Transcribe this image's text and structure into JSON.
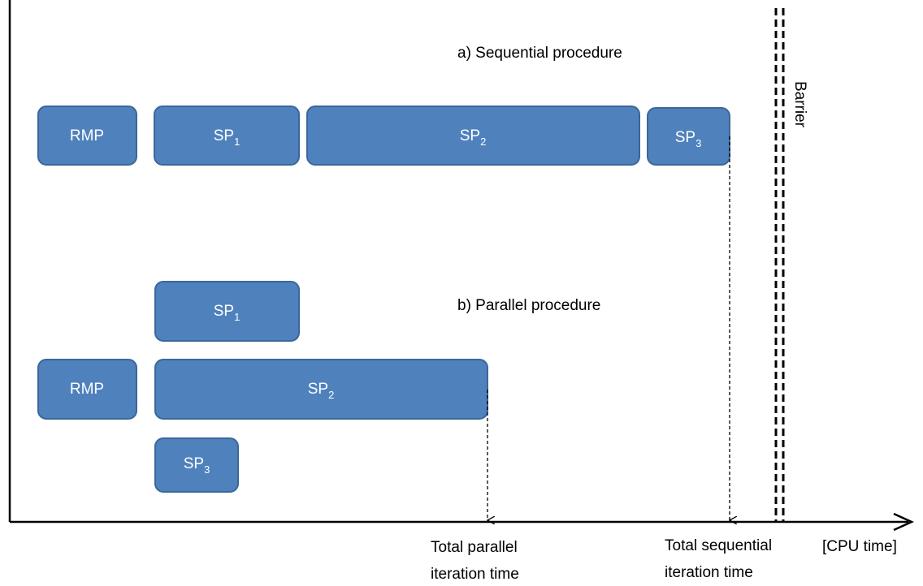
{
  "sequential": {
    "title": "a) Sequential procedure",
    "boxes": [
      {
        "label": "RMP"
      },
      {
        "label": "SP",
        "sub": "1"
      },
      {
        "label": "SP",
        "sub": "2"
      },
      {
        "label": "SP",
        "sub": "3"
      }
    ],
    "annotation": [
      "Total sequential",
      "iteration time"
    ]
  },
  "parallel": {
    "title": "b) Parallel procedure",
    "boxes": [
      {
        "label": "SP",
        "sub": "1"
      },
      {
        "label": "RMP"
      },
      {
        "label": "SP",
        "sub": "2"
      },
      {
        "label": "SP",
        "sub": "3"
      }
    ],
    "annotation": [
      "Total parallel",
      "iteration time"
    ]
  },
  "barrier": "Barrier",
  "axis_label": "[CPU time]"
}
